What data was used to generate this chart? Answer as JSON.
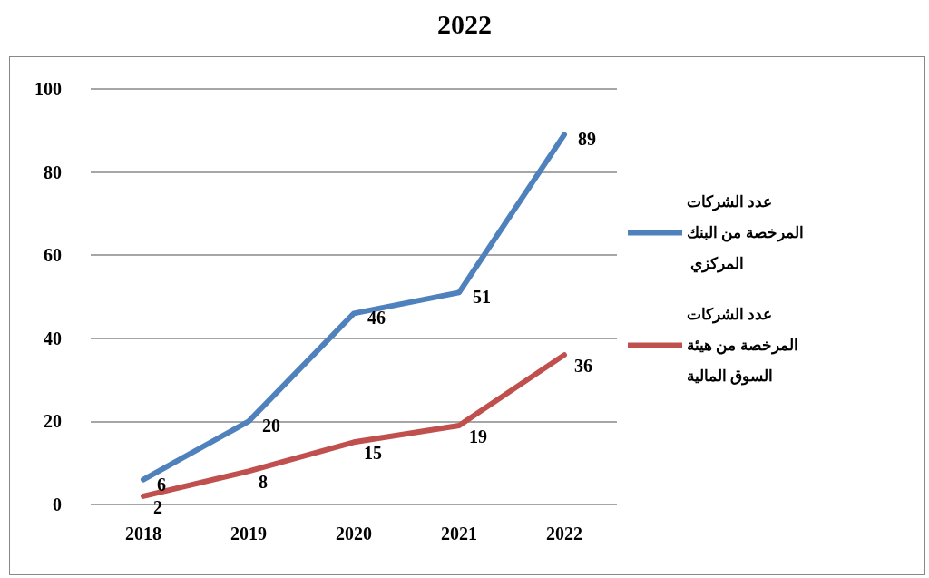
{
  "chart_data": {
    "type": "line",
    "title": "2022",
    "categories": [
      "2018",
      "2019",
      "2020",
      "2021",
      "2022"
    ],
    "series": [
      {
        "name": "عدد الشركات المرخصة من البنك المركزي",
        "color": "#4f81bd",
        "values": [
          6,
          20,
          46,
          51,
          89
        ]
      },
      {
        "name": "عدد الشركات المرخصة من هيئة السوق المالية",
        "color": "#c0504d",
        "values": [
          2,
          8,
          15,
          19,
          36
        ]
      }
    ],
    "ylim": [
      0,
      100
    ],
    "yticks": [
      0,
      20,
      40,
      60,
      80,
      100
    ],
    "grid": "y",
    "legend": "right",
    "marker": "none",
    "line_style": "solid",
    "data_labels": true
  }
}
